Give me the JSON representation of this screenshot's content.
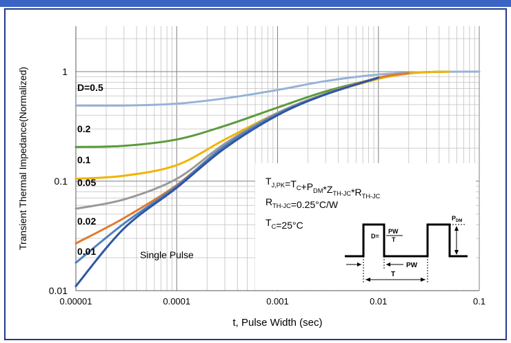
{
  "colors": {
    "frame_top": "#3a64c4",
    "frame_border": "#1f3a8a",
    "grid": "#bfbfbf",
    "axis": "#7f7f7f"
  },
  "chart_data": {
    "type": "line",
    "title": "",
    "xlabel": "t, Pulse Width (sec)",
    "ylabel": "Transient Thermal Impedance(Normalized)",
    "xscale": "log",
    "yscale": "log",
    "xlim": [
      1e-05,
      0.1
    ],
    "ylim": [
      0.01,
      2.6
    ],
    "grid": true,
    "x_ticks": [
      "0.00001",
      "0.0001",
      "0.001",
      "0.01",
      "0.1"
    ],
    "y_ticks": [
      "0.01",
      "0.1",
      "1"
    ],
    "series": [
      {
        "name": "D=0.5",
        "color": "#95b3d7",
        "x": [
          1e-05,
          3e-05,
          0.0001,
          0.0003,
          0.001,
          0.003,
          0.01,
          0.03,
          0.1
        ],
        "y": [
          0.49,
          0.49,
          0.51,
          0.57,
          0.68,
          0.82,
          0.94,
          0.99,
          1.0
        ]
      },
      {
        "name": "0.2",
        "color": "#5b9a3c",
        "x": [
          1e-05,
          3e-05,
          0.0001,
          0.0003,
          0.001,
          0.003,
          0.01,
          0.02,
          0.03,
          0.05
        ],
        "y": [
          0.205,
          0.21,
          0.24,
          0.32,
          0.47,
          0.66,
          0.87,
          0.96,
          0.99,
          1.0
        ]
      },
      {
        "name": "0.1",
        "color": "#f0b400",
        "x": [
          1e-05,
          3e-05,
          0.0001,
          0.0003,
          0.001,
          0.003,
          0.01,
          0.02,
          0.03,
          0.05
        ],
        "y": [
          0.105,
          0.112,
          0.14,
          0.24,
          0.42,
          0.62,
          0.86,
          0.96,
          0.99,
          1.0
        ]
      },
      {
        "name": "0.05",
        "color": "#999999",
        "x": [
          1e-05,
          3e-05,
          0.0001,
          0.0003,
          0.001,
          0.003,
          0.01,
          0.02
        ],
        "y": [
          0.056,
          0.068,
          0.105,
          0.22,
          0.42,
          0.63,
          0.88,
          0.97
        ]
      },
      {
        "name": "0.02",
        "color": "#e07a2e",
        "x": [
          1e-05,
          3e-05,
          0.0001,
          0.0003,
          0.001,
          0.003,
          0.01,
          0.02
        ],
        "y": [
          0.027,
          0.046,
          0.092,
          0.21,
          0.41,
          0.62,
          0.88,
          0.97
        ]
      },
      {
        "name": "0.01",
        "color": "#4f81bd",
        "x": [
          1e-05,
          3e-05,
          0.0001,
          0.0003,
          0.001,
          0.003,
          0.01
        ],
        "y": [
          0.018,
          0.041,
          0.09,
          0.21,
          0.41,
          0.62,
          0.88
        ]
      },
      {
        "name": "Single Pulse",
        "color": "#2f55a4",
        "x": [
          1e-05,
          3e-05,
          0.0001,
          0.0003,
          0.001,
          0.003,
          0.01
        ],
        "y": [
          0.011,
          0.037,
          0.087,
          0.2,
          0.4,
          0.62,
          0.88
        ]
      }
    ],
    "curve_labels": [
      "D=0.5",
      "0.2",
      "0.1",
      "0.05",
      "0.02",
      "0.01"
    ],
    "annotations": {
      "single_pulse": "Single Pulse",
      "eq_main": "T_J,PK=T_C+P_DM*Z_TH-JC*R_TH-JC",
      "eq_rth": "R_TH-JC=0.25°C/W",
      "eq_tc": "T_C=25°C",
      "pulse_duty": "D=",
      "pulse_pw_frac": "PW",
      "pulse_t_frac": "T",
      "pulse_pw": "PW",
      "pulse_t": "T",
      "pulse_pdm": "PDM"
    }
  }
}
